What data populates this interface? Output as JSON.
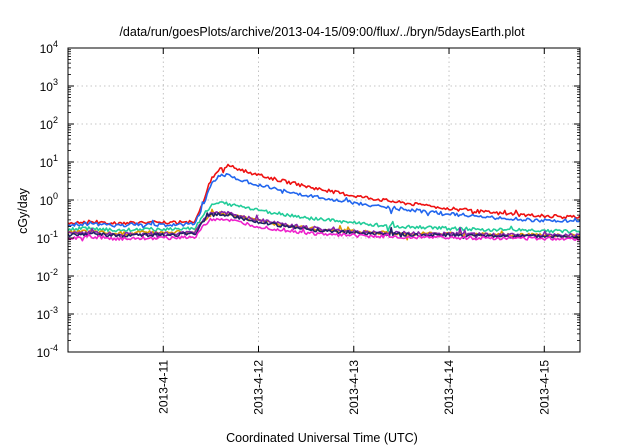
{
  "chart_data": {
    "type": "line",
    "title": "/data/run/goesPlots/archive/2013-04-15/09:00/flux/../bryn/5daysEarth.plot",
    "xlabel": "Coordinated Universal Time (UTC)",
    "ylabel": "cGy/day",
    "y_scale": "log",
    "ylim": [
      0.0001,
      10000
    ],
    "xlim": [
      "2013-04-10 00:00",
      "2013-04-15 09:00"
    ],
    "x_tick_labels": [
      "2013-4-11",
      "2013-4-12",
      "2013-4-13",
      "2013-4-14",
      "2013-4-15"
    ],
    "y_ticks": [
      {
        "base": "10",
        "exp": "-4"
      },
      {
        "base": "10",
        "exp": "-3"
      },
      {
        "base": "10",
        "exp": "-2"
      },
      {
        "base": "10",
        "exp": "-1"
      },
      {
        "base": "10",
        "exp": "0"
      },
      {
        "base": "10",
        "exp": "1"
      },
      {
        "base": "10",
        "exp": "2"
      },
      {
        "base": "10",
        "exp": "3"
      },
      {
        "base": "10",
        "exp": "4"
      }
    ],
    "grid": true,
    "x": [
      "2013-04-10 00:00",
      "2013-04-10 06:00",
      "2013-04-10 12:00",
      "2013-04-10 18:00",
      "2013-04-11 00:00",
      "2013-04-11 06:00",
      "2013-04-11 08:00",
      "2013-04-11 10:00",
      "2013-04-11 12:00",
      "2013-04-11 14:00",
      "2013-04-11 16:00",
      "2013-04-11 18:00",
      "2013-04-12 00:00",
      "2013-04-12 06:00",
      "2013-04-12 12:00",
      "2013-04-12 18:00",
      "2013-04-13 00:00",
      "2013-04-13 06:00",
      "2013-04-13 12:00",
      "2013-04-13 18:00",
      "2013-04-14 00:00",
      "2013-04-14 06:00",
      "2013-04-14 12:00",
      "2013-04-14 18:00",
      "2013-04-15 00:00",
      "2013-04-15 06:00",
      "2013-04-15 09:00"
    ],
    "series": [
      {
        "color": "#ee1111",
        "values": [
          0.25,
          0.27,
          0.24,
          0.26,
          0.25,
          0.26,
          0.26,
          0.9,
          3.5,
          6.5,
          8.0,
          7.0,
          4.5,
          3.2,
          2.3,
          1.7,
          1.3,
          1.05,
          0.85,
          0.72,
          0.6,
          0.52,
          0.45,
          0.41,
          0.38,
          0.36,
          0.35
        ]
      },
      {
        "color": "#2266ee",
        "values": [
          0.22,
          0.24,
          0.21,
          0.23,
          0.22,
          0.23,
          0.23,
          0.7,
          2.6,
          4.2,
          4.5,
          3.8,
          2.5,
          1.8,
          1.35,
          1.05,
          0.85,
          0.7,
          0.58,
          0.5,
          0.43,
          0.38,
          0.34,
          0.31,
          0.29,
          0.28,
          0.27
        ]
      },
      {
        "color": "#22cc99",
        "values": [
          0.17,
          0.18,
          0.16,
          0.17,
          0.17,
          0.18,
          0.18,
          0.4,
          0.7,
          0.82,
          0.8,
          0.72,
          0.55,
          0.42,
          0.34,
          0.29,
          0.25,
          0.22,
          0.2,
          0.19,
          0.18,
          0.17,
          0.165,
          0.16,
          0.155,
          0.15,
          0.15
        ]
      },
      {
        "color": "#dd9900",
        "values": [
          0.14,
          0.15,
          0.13,
          0.14,
          0.14,
          0.145,
          0.145,
          0.28,
          0.42,
          0.44,
          0.42,
          0.38,
          0.28,
          0.22,
          0.18,
          0.16,
          0.15,
          0.14,
          0.135,
          0.13,
          0.128,
          0.125,
          0.122,
          0.12,
          0.12,
          0.118,
          0.118
        ]
      },
      {
        "color": "#8822aa",
        "values": [
          0.13,
          0.14,
          0.125,
          0.13,
          0.13,
          0.135,
          0.135,
          0.3,
          0.45,
          0.48,
          0.46,
          0.4,
          0.3,
          0.23,
          0.19,
          0.165,
          0.15,
          0.14,
          0.135,
          0.13,
          0.128,
          0.125,
          0.122,
          0.12,
          0.12,
          0.118,
          0.118
        ]
      },
      {
        "color": "#222266",
        "values": [
          0.12,
          0.13,
          0.115,
          0.12,
          0.12,
          0.125,
          0.125,
          0.27,
          0.4,
          0.43,
          0.41,
          0.36,
          0.27,
          0.21,
          0.17,
          0.15,
          0.14,
          0.13,
          0.125,
          0.12,
          0.118,
          0.115,
          0.113,
          0.112,
          0.11,
          0.11,
          0.11
        ]
      },
      {
        "color": "#ee22cc",
        "values": [
          0.1,
          0.11,
          0.095,
          0.1,
          0.1,
          0.105,
          0.105,
          0.2,
          0.3,
          0.32,
          0.3,
          0.27,
          0.2,
          0.16,
          0.135,
          0.12,
          0.115,
          0.11,
          0.108,
          0.105,
          0.103,
          0.1,
          0.1,
          0.098,
          0.097,
          0.096,
          0.095
        ]
      }
    ]
  }
}
